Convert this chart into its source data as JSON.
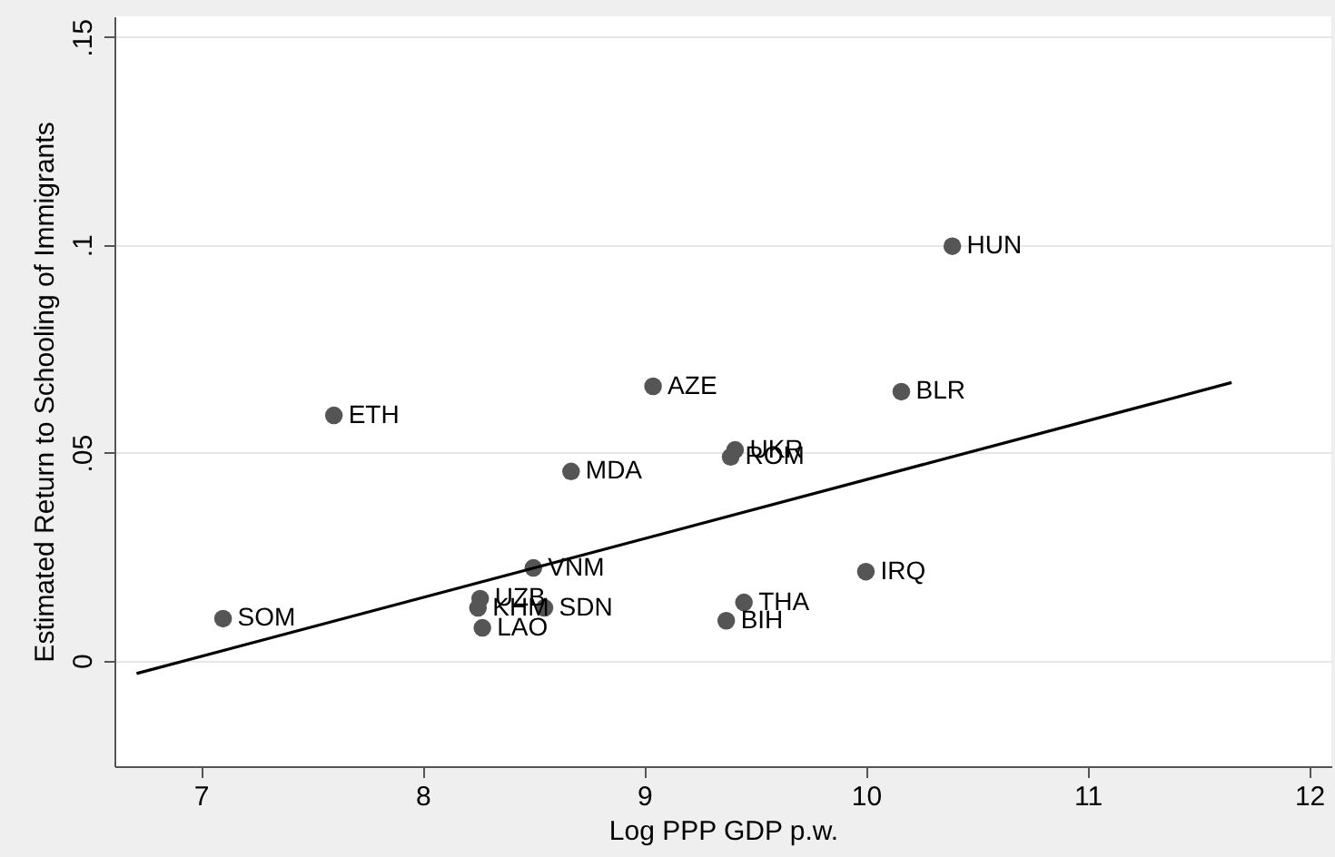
{
  "chart_data": {
    "type": "scatter",
    "xlabel": "Log PPP GDP p.w.",
    "ylabel": "Estimated Return to Schooling of Immigrants",
    "xlim": [
      6.61,
      12.1
    ],
    "xticks": [
      7,
      8,
      9,
      10,
      11,
      12
    ],
    "ylim": [
      -0.0254,
      0.155
    ],
    "yticks": [
      0,
      {
        "value": 0.05,
        "label": ".05"
      },
      {
        "value": 0.1,
        "label": ".1"
      },
      {
        "value": 0.15,
        "label": ".15"
      }
    ],
    "grid": "y",
    "series": [
      {
        "marker": "circle",
        "color": "#555555",
        "x": [
          10.39,
          9.04,
          10.16,
          7.6,
          9.41,
          9.39,
          8.67,
          8.5,
          10.0,
          8.26,
          8.25,
          8.55,
          8.27,
          7.1,
          9.45,
          9.37
        ],
        "values": [
          0.0997,
          0.066,
          0.0647,
          0.059,
          0.0507,
          0.049,
          0.0455,
          0.0223,
          0.0214,
          0.0149,
          0.0127,
          0.0127,
          0.0079,
          0.0101,
          0.014,
          0.0096
        ]
      },
      {
        "type": "line",
        "color": "#000000",
        "x": [
          6.71,
          11.65
        ],
        "values": [
          -0.0031,
          0.0669
        ]
      }
    ],
    "annotations": [
      {
        "text": "HUN",
        "x": 10.39,
        "y": 0.0997
      },
      {
        "text": "AZE",
        "x": 9.04,
        "y": 0.066
      },
      {
        "text": "BLR",
        "x": 10.16,
        "y": 0.0647
      },
      {
        "text": "ETH",
        "x": 7.6,
        "y": 0.059
      },
      {
        "text": "UKR",
        "x": 9.41,
        "y": 0.0507
      },
      {
        "text": "ROM",
        "x": 9.39,
        "y": 0.049
      },
      {
        "text": "MDA",
        "x": 8.67,
        "y": 0.0455
      },
      {
        "text": "VNM",
        "x": 8.5,
        "y": 0.0223
      },
      {
        "text": "IRQ",
        "x": 10.0,
        "y": 0.0214
      },
      {
        "text": "UZB",
        "x": 8.26,
        "y": 0.0149
      },
      {
        "text": "KHM",
        "x": 8.25,
        "y": 0.0127
      },
      {
        "text": "SDN",
        "x": 8.55,
        "y": 0.0127
      },
      {
        "text": "LAO",
        "x": 8.27,
        "y": 0.0079
      },
      {
        "text": "SOM",
        "x": 7.1,
        "y": 0.0101
      },
      {
        "text": "THA",
        "x": 9.45,
        "y": 0.014
      },
      {
        "text": "BIH",
        "x": 9.37,
        "y": 0.0096
      }
    ]
  }
}
